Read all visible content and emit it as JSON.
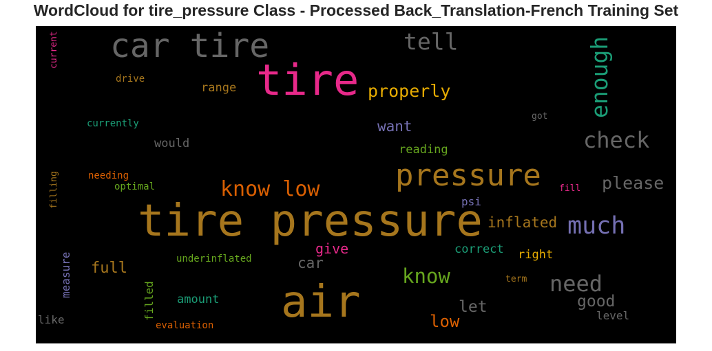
{
  "chart_data": {
    "type": "wordcloud",
    "title": "WordCloud for tire_pressure Class - Processed Back_Translation-French Training Set",
    "background": "#000000",
    "colormap": "Dark2",
    "words": [
      {
        "text": "tire pressure",
        "weight": 64,
        "color": "#a6761d",
        "orientation": "horizontal"
      },
      {
        "text": "air",
        "weight": 64,
        "color": "#a6761d",
        "orientation": "horizontal"
      },
      {
        "text": "tire",
        "weight": 62,
        "color": "#e7298a",
        "orientation": "horizontal"
      },
      {
        "text": "car tire",
        "weight": 48,
        "color": "#666666",
        "orientation": "horizontal"
      },
      {
        "text": "pressure",
        "weight": 44,
        "color": "#a6761d",
        "orientation": "horizontal"
      },
      {
        "text": "much",
        "weight": 35,
        "color": "#7570b3",
        "orientation": "horizontal"
      },
      {
        "text": "enough",
        "weight": 33,
        "color": "#1b9e77",
        "orientation": "vertical"
      },
      {
        "text": "tell",
        "weight": 33,
        "color": "#666666",
        "orientation": "horizontal"
      },
      {
        "text": "check",
        "weight": 32,
        "color": "#666666",
        "orientation": "horizontal"
      },
      {
        "text": "need",
        "weight": 32,
        "color": "#666666",
        "orientation": "horizontal"
      },
      {
        "text": "know low",
        "weight": 30,
        "color": "#d95f02",
        "orientation": "horizontal"
      },
      {
        "text": "know",
        "weight": 29,
        "color": "#66a61e",
        "orientation": "horizontal"
      },
      {
        "text": "please",
        "weight": 25,
        "color": "#666666",
        "orientation": "horizontal"
      },
      {
        "text": "properly",
        "weight": 25,
        "color": "#e6ab02",
        "orientation": "horizontal"
      },
      {
        "text": "low",
        "weight": 24,
        "color": "#d95f02",
        "orientation": "horizontal"
      },
      {
        "text": "good",
        "weight": 23,
        "color": "#666666",
        "orientation": "horizontal"
      },
      {
        "text": "let",
        "weight": 23,
        "color": "#666666",
        "orientation": "horizontal"
      },
      {
        "text": "full",
        "weight": 22,
        "color": "#a6761d",
        "orientation": "horizontal"
      },
      {
        "text": "inflated",
        "weight": 21,
        "color": "#a6761d",
        "orientation": "horizontal"
      },
      {
        "text": "want",
        "weight": 21,
        "color": "#7570b3",
        "orientation": "horizontal"
      },
      {
        "text": "car",
        "weight": 21,
        "color": "#666666",
        "orientation": "horizontal"
      },
      {
        "text": "give",
        "weight": 20,
        "color": "#e7298a",
        "orientation": "horizontal"
      },
      {
        "text": "range",
        "weight": 17,
        "color": "#a6761d",
        "orientation": "horizontal"
      },
      {
        "text": "correct",
        "weight": 17,
        "color": "#1b9e77",
        "orientation": "horizontal"
      },
      {
        "text": "right",
        "weight": 17,
        "color": "#e6ab02",
        "orientation": "horizontal"
      },
      {
        "text": "reading",
        "weight": 17,
        "color": "#66a61e",
        "orientation": "horizontal"
      },
      {
        "text": "would",
        "weight": 17,
        "color": "#666666",
        "orientation": "horizontal"
      },
      {
        "text": "amount",
        "weight": 17,
        "color": "#1b9e77",
        "orientation": "horizontal"
      },
      {
        "text": "psi",
        "weight": 16,
        "color": "#7570b3",
        "orientation": "horizontal"
      },
      {
        "text": "filled",
        "weight": 16,
        "color": "#66a61e",
        "orientation": "vertical"
      },
      {
        "text": "measure",
        "weight": 16,
        "color": "#7570b3",
        "orientation": "vertical"
      },
      {
        "text": "like",
        "weight": 16,
        "color": "#666666",
        "orientation": "horizontal"
      },
      {
        "text": "level",
        "weight": 16,
        "color": "#666666",
        "orientation": "horizontal"
      },
      {
        "text": "drive",
        "weight": 14,
        "color": "#a6761d",
        "orientation": "horizontal"
      },
      {
        "text": "currently",
        "weight": 14,
        "color": "#1b9e77",
        "orientation": "horizontal"
      },
      {
        "text": "needing",
        "weight": 14,
        "color": "#d95f02",
        "orientation": "horizontal"
      },
      {
        "text": "optimal",
        "weight": 14,
        "color": "#66a61e",
        "orientation": "horizontal"
      },
      {
        "text": "underinflated",
        "weight": 14,
        "color": "#66a61e",
        "orientation": "horizontal"
      },
      {
        "text": "evaluation",
        "weight": 14,
        "color": "#d95f02",
        "orientation": "horizontal"
      },
      {
        "text": "fill",
        "weight": 13,
        "color": "#e7298a",
        "orientation": "horizontal"
      },
      {
        "text": "term",
        "weight": 13,
        "color": "#a6761d",
        "orientation": "horizontal"
      },
      {
        "text": "got",
        "weight": 13,
        "color": "#666666",
        "orientation": "horizontal"
      },
      {
        "text": "current",
        "weight": 13,
        "color": "#e7298a",
        "orientation": "vertical"
      },
      {
        "text": "filling",
        "weight": 13,
        "color": "#a6761d",
        "orientation": "vertical"
      }
    ]
  }
}
